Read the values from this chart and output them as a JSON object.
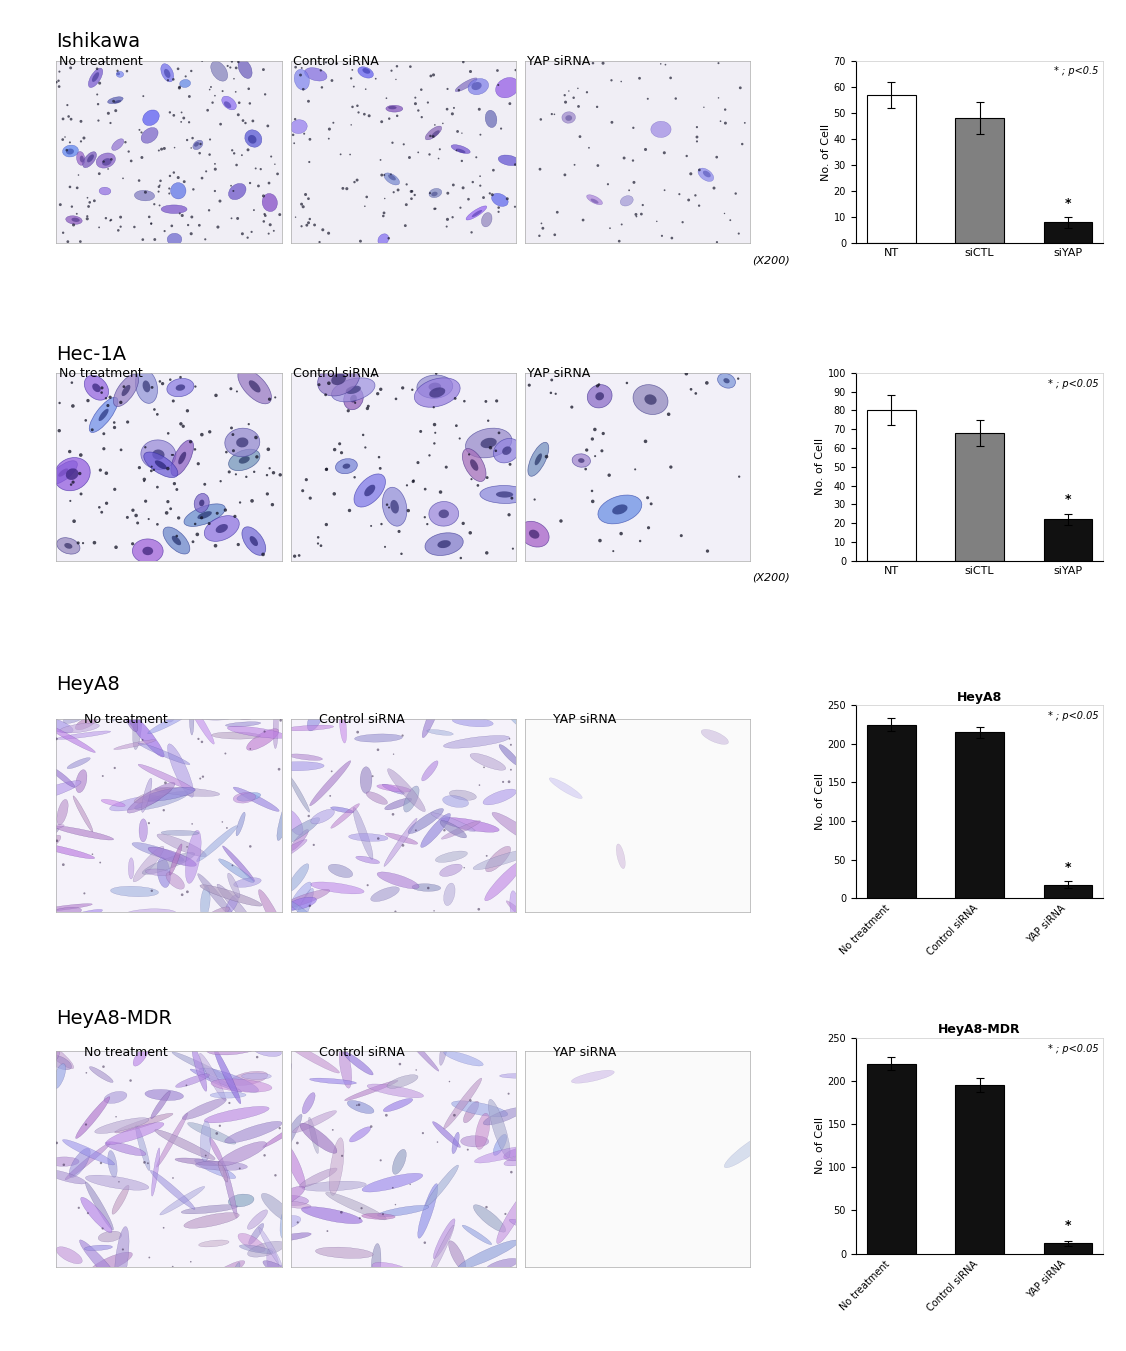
{
  "ishikawa": {
    "title": "Ishikawa",
    "labels": [
      "No treatment",
      "Control siRNA",
      "YAP siRNA"
    ],
    "bar_labels": [
      "NT",
      "siCTL",
      "siYAP"
    ],
    "values": [
      57,
      48,
      8
    ],
    "errors": [
      5,
      6,
      2
    ],
    "colors": [
      "white",
      "#808080",
      "#111111"
    ],
    "ylim": [
      0,
      70
    ],
    "yticks": [
      0,
      10,
      20,
      30,
      40,
      50,
      60,
      70
    ],
    "annotation": "* ; p<0.5",
    "star_bar": 2,
    "ylabel": "No. of Cell",
    "magnification": "(X200)"
  },
  "hec1a": {
    "title": "Hec-1A",
    "labels": [
      "No treatment",
      "Control siRNA",
      "YAP siRNA"
    ],
    "bar_labels": [
      "NT",
      "siCTL",
      "siYAP"
    ],
    "values": [
      80,
      68,
      22
    ],
    "errors": [
      8,
      7,
      3
    ],
    "colors": [
      "white",
      "#808080",
      "#111111"
    ],
    "ylim": [
      0,
      100
    ],
    "yticks": [
      0,
      10,
      20,
      30,
      40,
      50,
      60,
      70,
      80,
      90,
      100
    ],
    "annotation": "* ; p<0.05",
    "star_bar": 2,
    "ylabel": "No. of Cell",
    "magnification": "(X200)"
  },
  "heya8": {
    "title": "HeyA8",
    "labels": [
      "No treatment",
      "Control siRNA",
      "YAP siRNA"
    ],
    "bar_labels": [
      "No treatment",
      "Control siRNA",
      "YAP siRNA"
    ],
    "values": [
      225,
      215,
      18
    ],
    "errors": [
      8,
      7,
      4
    ],
    "colors": [
      "#111111",
      "#111111",
      "#111111"
    ],
    "ylim": [
      0,
      250
    ],
    "yticks": [
      0,
      50,
      100,
      150,
      200,
      250
    ],
    "annotation": "* ; p<0.05",
    "star_bar": 2,
    "ylabel": "No. of Cell"
  },
  "heya8mdr": {
    "title": "HeyA8-MDR",
    "labels": [
      "No treatment",
      "Control siRNA",
      "YAP siRNA"
    ],
    "bar_labels": [
      "No treatment",
      "Control siRNA",
      "YAP siRNA"
    ],
    "values": [
      220,
      195,
      12
    ],
    "errors": [
      7,
      8,
      3
    ],
    "colors": [
      "#111111",
      "#111111",
      "#111111"
    ],
    "ylim": [
      0,
      250
    ],
    "yticks": [
      0,
      50,
      100,
      150,
      200,
      250
    ],
    "annotation": "* ; p<0.05",
    "star_bar": 2,
    "ylabel": "No. of Cell"
  },
  "bg_color": "#ffffff"
}
